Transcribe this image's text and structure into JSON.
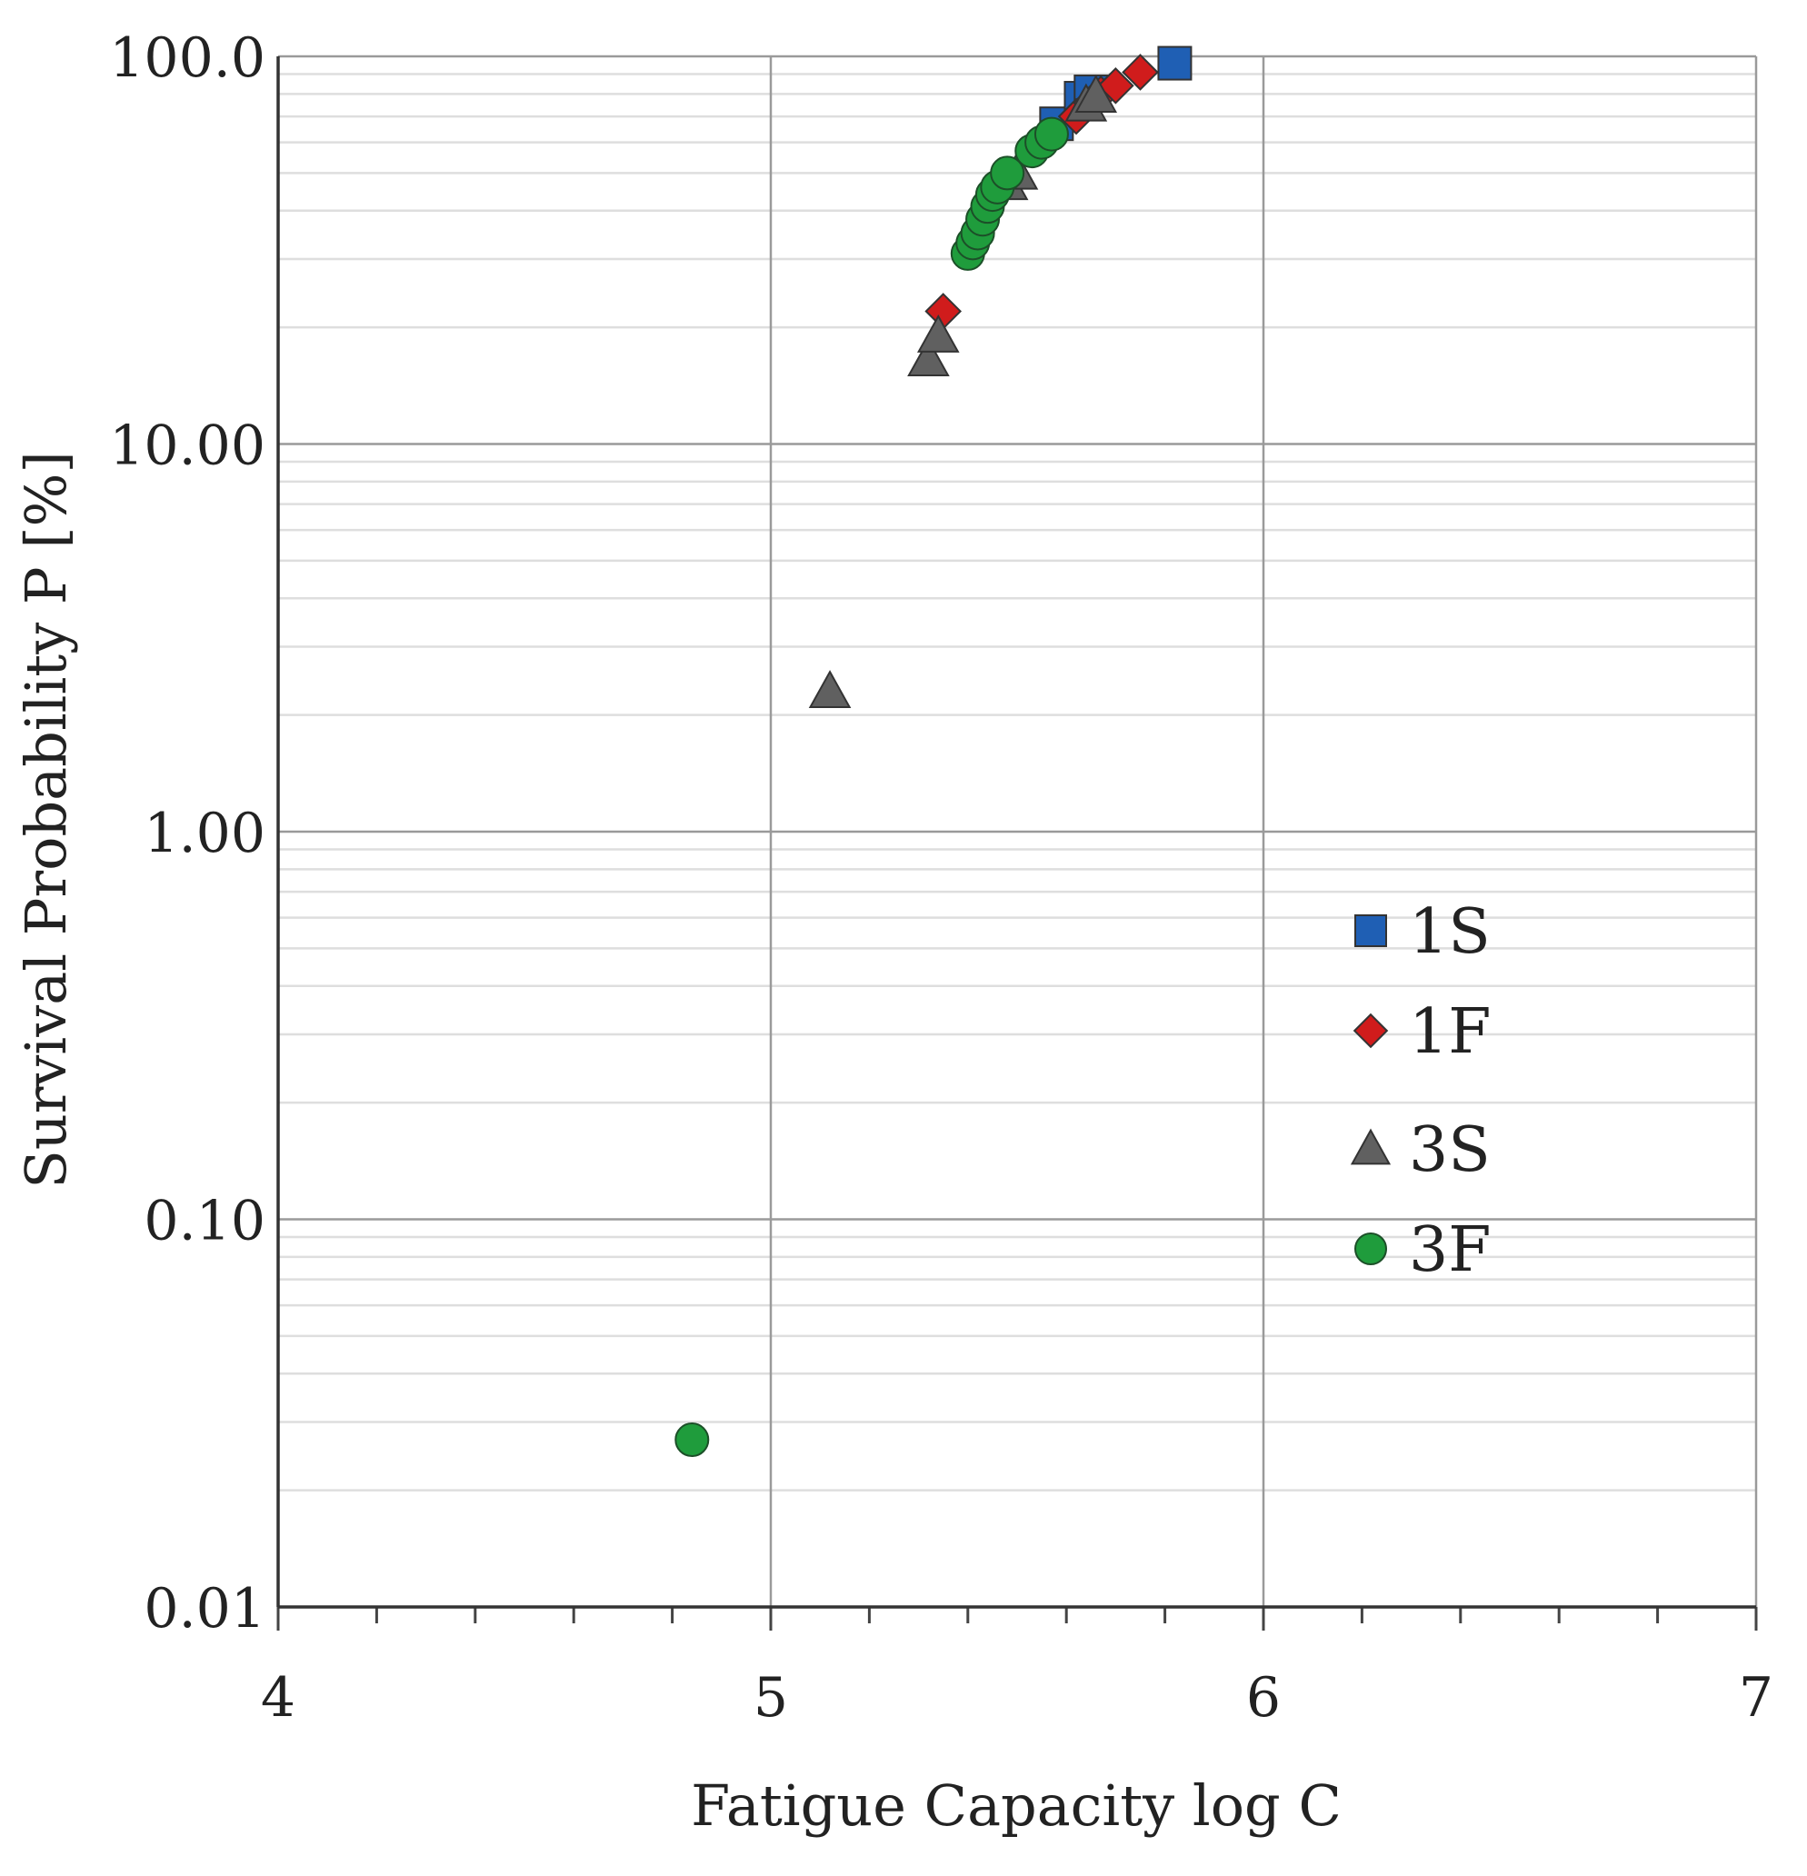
{
  "chart_data": {
    "type": "scatter",
    "title": "",
    "xlabel": "Fatigue Capacity log C",
    "ylabel": "Survival Probability P [%]",
    "xlim": [
      4,
      7
    ],
    "ylim": [
      0.01,
      100.0
    ],
    "y_scale": "log",
    "x_ticks": [
      "4",
      "5",
      "6",
      "7"
    ],
    "y_ticks": [
      "0.01",
      "0.10",
      "1.00",
      "10.00",
      "100.0"
    ],
    "grid": true,
    "legend_position": "right-middle",
    "series": [
      {
        "name": "1S",
        "marker": "square",
        "color": "#1f5fb4",
        "points": [
          {
            "x": 5.58,
            "y": 67
          },
          {
            "x": 5.63,
            "y": 78
          },
          {
            "x": 5.65,
            "y": 81
          },
          {
            "x": 5.82,
            "y": 96
          }
        ]
      },
      {
        "name": "1F",
        "marker": "diamond",
        "color": "#d01c1c",
        "points": [
          {
            "x": 5.35,
            "y": 22
          },
          {
            "x": 5.62,
            "y": 70
          },
          {
            "x": 5.65,
            "y": 76
          },
          {
            "x": 5.67,
            "y": 80
          },
          {
            "x": 5.7,
            "y": 84
          },
          {
            "x": 5.75,
            "y": 91
          }
        ]
      },
      {
        "name": "3S",
        "marker": "triangle",
        "color": "#606060",
        "points": [
          {
            "x": 5.12,
            "y": 2.3
          },
          {
            "x": 5.32,
            "y": 16.5
          },
          {
            "x": 5.34,
            "y": 19
          },
          {
            "x": 5.48,
            "y": 47
          },
          {
            "x": 5.5,
            "y": 50
          },
          {
            "x": 5.64,
            "y": 75
          },
          {
            "x": 5.66,
            "y": 79
          }
        ]
      },
      {
        "name": "3F",
        "marker": "circle",
        "color": "#1f9c3c",
        "points": [
          {
            "x": 4.84,
            "y": 0.027
          },
          {
            "x": 5.4,
            "y": 31
          },
          {
            "x": 5.41,
            "y": 33
          },
          {
            "x": 5.42,
            "y": 35
          },
          {
            "x": 5.43,
            "y": 38
          },
          {
            "x": 5.44,
            "y": 41
          },
          {
            "x": 5.45,
            "y": 44
          },
          {
            "x": 5.46,
            "y": 46
          },
          {
            "x": 5.48,
            "y": 50
          },
          {
            "x": 5.53,
            "y": 57
          },
          {
            "x": 5.55,
            "y": 60
          },
          {
            "x": 5.57,
            "y": 63
          }
        ]
      }
    ]
  }
}
